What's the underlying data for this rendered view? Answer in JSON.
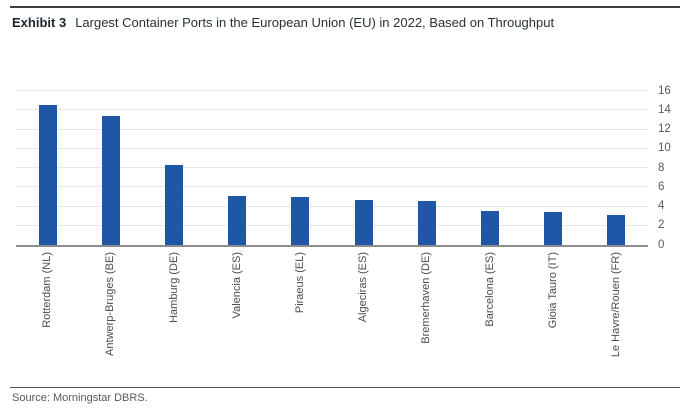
{
  "header": {
    "exhibit_label": "Exhibit 3",
    "title": "Largest Container Ports in the European Union (EU) in 2022, Based on Throughput"
  },
  "footer": {
    "source": "Source: Morningstar DBRS."
  },
  "chart_data": {
    "type": "bar",
    "title": "Largest Container Ports in the European Union (EU) in 2022, Based on Throughput",
    "categories": [
      "Rotterdam (NL)",
      "Antwerp-Bruges (BE)",
      "Hamburg (DE)",
      "Valencia (ES)",
      "Piraeus (EL)",
      "Algeciras (ES)",
      "Bremerhaven (DE)",
      "Barcelona (ES)",
      "Gioia Tauro (IT)",
      "Le Havre/Rouen (FR)"
    ],
    "values": [
      14.5,
      13.4,
      8.3,
      5.1,
      5.0,
      4.7,
      4.6,
      3.5,
      3.4,
      3.1
    ],
    "xlabel": "",
    "ylabel": "",
    "ylim": [
      0,
      16
    ],
    "yticks": [
      0,
      2,
      4,
      6,
      8,
      10,
      12,
      14,
      16
    ],
    "y_axis_position": "right",
    "x_tick_rotation": 90,
    "gridlines": true,
    "legend": "none",
    "bar_color": "#2056A6"
  }
}
